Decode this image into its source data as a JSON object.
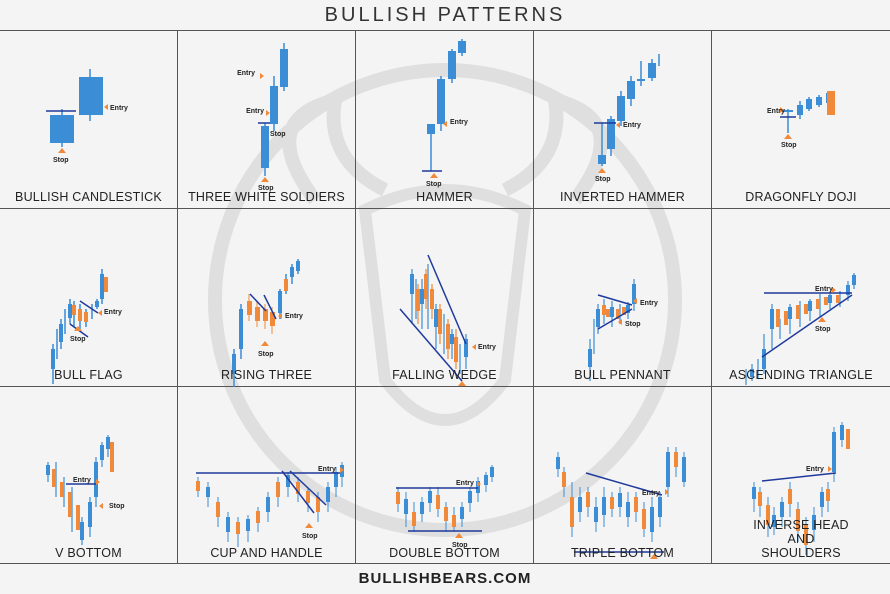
{
  "page": {
    "title": "BULLISH PATTERNS",
    "footer": "BULLISHBEARS.COM"
  },
  "markers": {
    "entry": "Entry",
    "stop": "Stop"
  },
  "colors": {
    "up": "#3b8dd6",
    "down": "#f08a3a",
    "line": "#1f3a9c",
    "marker": "#f08a3a"
  },
  "patterns": [
    {
      "label": "BULLISH CANDLESTICK"
    },
    {
      "label": "THREE WHITE SOLDIERS"
    },
    {
      "label": "HAMMER"
    },
    {
      "label": "INVERTED HAMMER"
    },
    {
      "label": "DRAGONFLY DOJI"
    },
    {
      "label": "BULL FLAG"
    },
    {
      "label": "RISING THREE"
    },
    {
      "label": "FALLING WEDGE"
    },
    {
      "label": "BULL PENNANT"
    },
    {
      "label": "ASCENDING TRIANGLE"
    },
    {
      "label": "V BOTTOM"
    },
    {
      "label": "CUP AND HANDLE"
    },
    {
      "label": "DOUBLE BOTTOM"
    },
    {
      "label": "TRIPLE BOTTOM"
    },
    {
      "label": "INVERSE HEAD AND SHOULDERS"
    }
  ]
}
